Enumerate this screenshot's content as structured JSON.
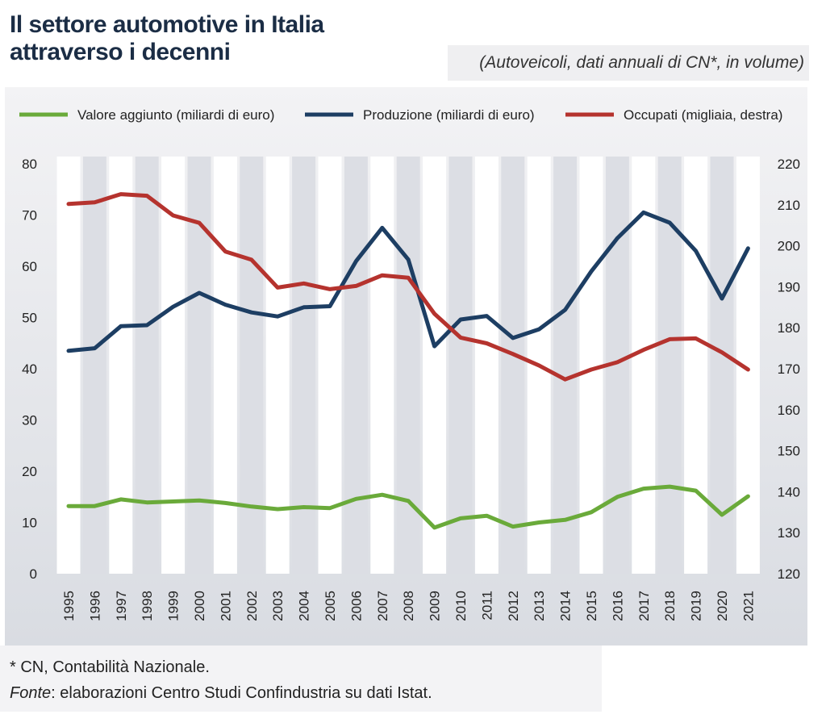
{
  "title": {
    "line1": "Il settore automotive in Italia",
    "line2": "attraverso i decenni"
  },
  "subtitle": "(Autoveicoli, dati annuali di CN*, in volume)",
  "footnote": "* CN, Contabilità Nazionale.",
  "source": {
    "label": "Fonte",
    "text": ": elaborazioni Centro Studi Confindustria su dati Istat."
  },
  "colors": {
    "valore": "#6aaa3a",
    "produzione": "#1d3e63",
    "occupati": "#b5332e"
  },
  "chart_data": {
    "type": "line",
    "x": [
      "1995",
      "1996",
      "1997",
      "1998",
      "1999",
      "2000",
      "2001",
      "2002",
      "2003",
      "2004",
      "2005",
      "2006",
      "2007",
      "2008",
      "2009",
      "2010",
      "2011",
      "2012",
      "2013",
      "2014",
      "2015",
      "2016",
      "2017",
      "2018",
      "2019",
      "2020",
      "2021"
    ],
    "series": [
      {
        "name": "Valore aggiunto (miliardi di euro)",
        "axis": "left",
        "values": [
          13.2,
          13.2,
          14.5,
          13.9,
          14.1,
          14.3,
          13.8,
          13.1,
          12.6,
          13.0,
          12.8,
          14.6,
          15.4,
          14.2,
          9.0,
          10.8,
          11.3,
          9.2,
          10.0,
          10.5,
          12.0,
          15.0,
          16.6,
          17.0,
          16.2,
          11.5,
          15.1
        ]
      },
      {
        "name": "Produzione (miliardi di euro)",
        "axis": "left",
        "values": [
          43.5,
          44.0,
          48.3,
          48.5,
          52.1,
          54.8,
          52.5,
          51.0,
          50.2,
          52.0,
          52.2,
          61.0,
          67.5,
          61.3,
          44.4,
          49.6,
          50.3,
          46.0,
          47.7,
          51.5,
          59.0,
          65.5,
          70.5,
          68.5,
          63.0,
          53.7,
          63.5
        ]
      },
      {
        "name": "Occupati (migliaia, destra)",
        "axis": "right",
        "values": [
          210.2,
          210.6,
          212.6,
          212.2,
          207.4,
          205.6,
          198.6,
          196.6,
          189.8,
          190.8,
          189.4,
          190.2,
          192.8,
          192.2,
          183.4,
          177.6,
          176.2,
          173.6,
          170.8,
          167.4,
          169.8,
          171.6,
          174.6,
          177.2,
          177.4,
          174.0,
          169.8
        ]
      }
    ],
    "ylim_left": [
      0,
      80
    ],
    "yticks_left": [
      "0",
      "10",
      "20",
      "30",
      "40",
      "50",
      "60",
      "70",
      "80"
    ],
    "ylim_right": [
      120,
      220
    ],
    "yticks_right": [
      "120",
      "130",
      "140",
      "150",
      "160",
      "170",
      "180",
      "190",
      "200",
      "210",
      "220"
    ],
    "legend": "top",
    "grid": false
  }
}
